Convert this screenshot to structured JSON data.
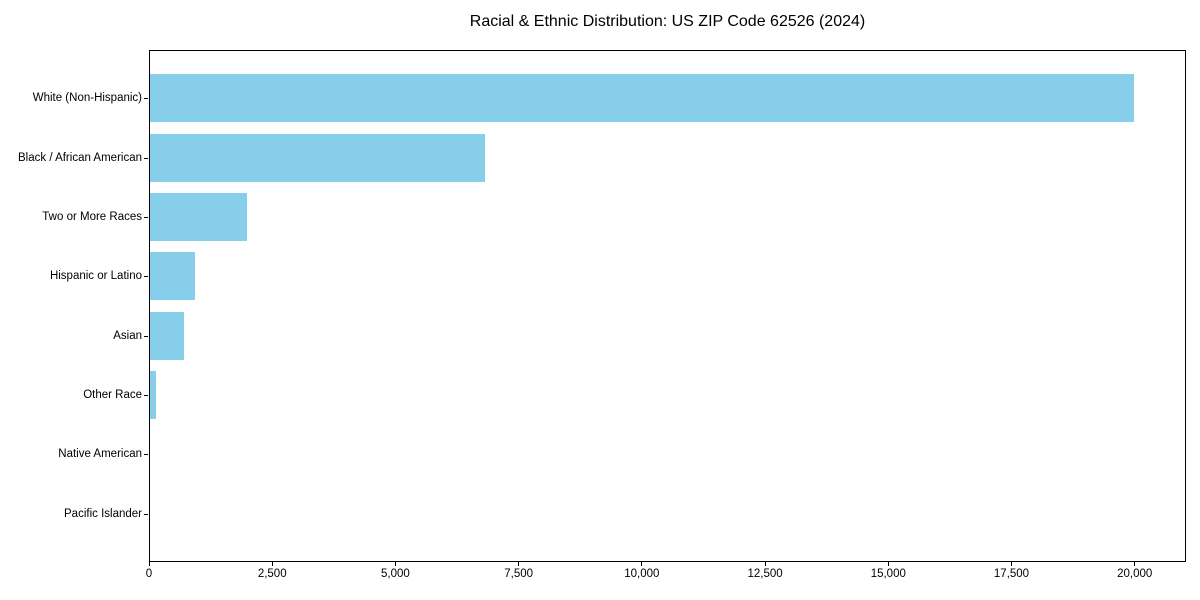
{
  "page": {
    "background_color": "#ffffff"
  },
  "chart_data": {
    "type": "bar",
    "orientation": "horizontal",
    "title": "Racial & Ethnic Distribution: US ZIP Code 62526 (2024)",
    "categories": [
      "White (Non-Hispanic)",
      "Black / African American",
      "Two or More Races",
      "Hispanic or Latino",
      "Asian",
      "Other Race",
      "Native American",
      "Pacific Islander"
    ],
    "values": [
      19970,
      6800,
      1960,
      910,
      690,
      130,
      0,
      0
    ],
    "bar_color": "#87CEEB",
    "axis_color": "#000000",
    "text_color": "#000000",
    "xlabel": "",
    "ylabel": "",
    "xlim": [
      0,
      21000
    ],
    "x_ticks": [
      0,
      2500,
      5000,
      7500,
      10000,
      12500,
      15000,
      17500,
      20000
    ],
    "x_tick_labels": [
      "0",
      "2,500",
      "5,000",
      "7,500",
      "10,000",
      "12,500",
      "15,000",
      "17,500",
      "20,000"
    ],
    "grid": false,
    "legend_position": "none",
    "plot_background": "#ffffff"
  }
}
